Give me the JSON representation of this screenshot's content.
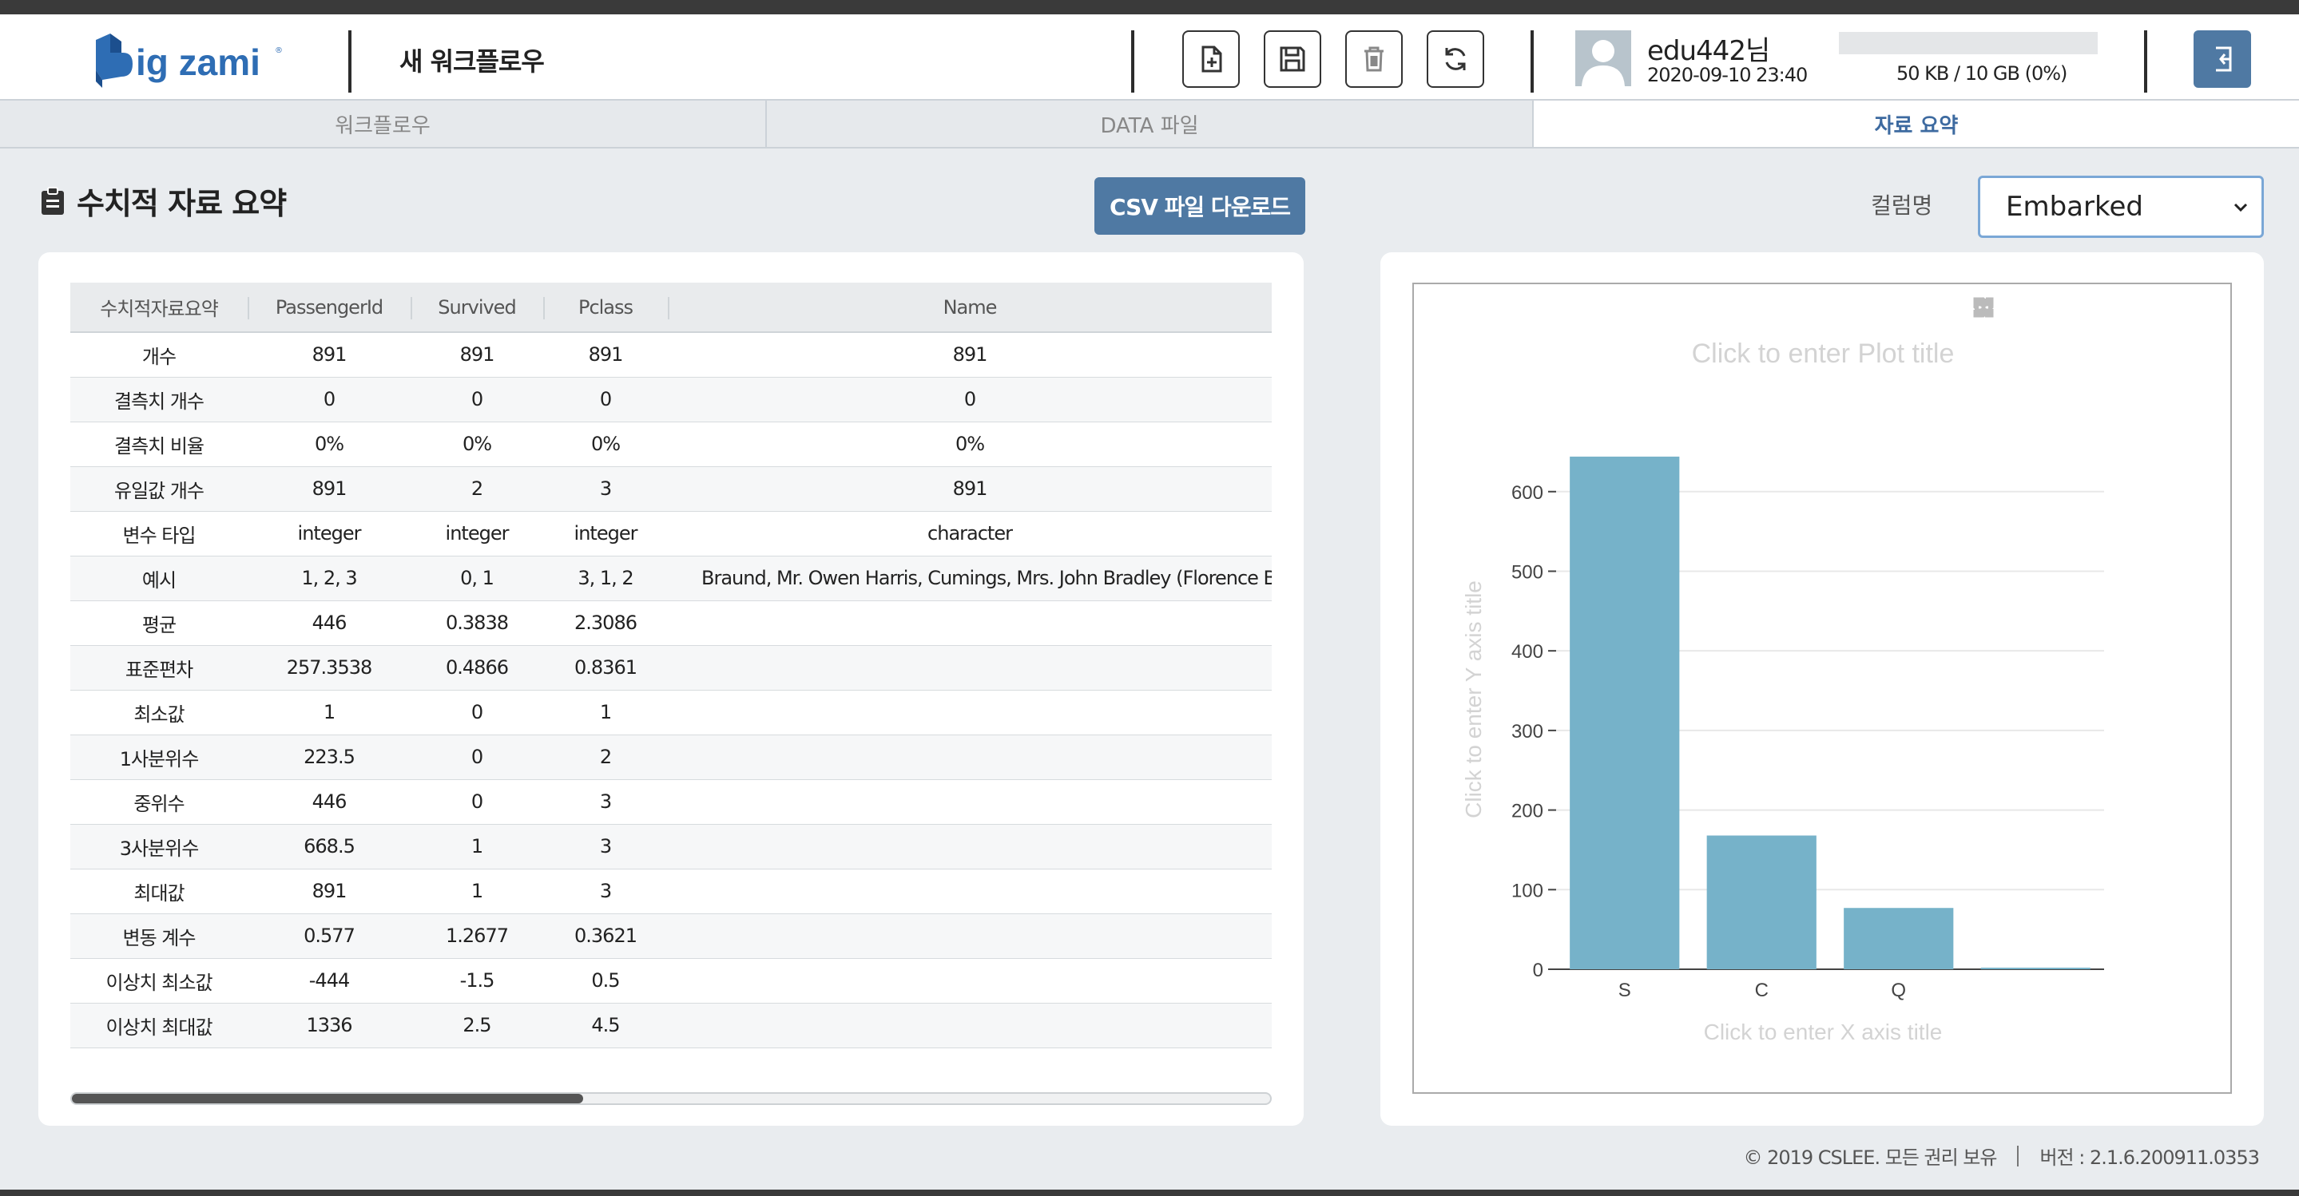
{
  "header": {
    "logo_text": "Big zami",
    "workflow_title": "새 워크플로우",
    "user_name": "edu442님",
    "user_datetime": "2020-09-10 23:40",
    "storage_text": "50 KB / 10 GB (0%)",
    "storage_percent": 0
  },
  "tabs": [
    {
      "label": "워크플로우",
      "active": false
    },
    {
      "label": "DATA 파일",
      "active": false
    },
    {
      "label": "자료 요약",
      "active": true
    }
  ],
  "toolbar": {
    "section_title": "수치적 자료 요약",
    "csv_button": "CSV 파일 다운로드",
    "column_label": "컬럼명",
    "column_selected": "Embarked"
  },
  "table": {
    "headers": [
      "수치적자료요약",
      "PassengerId",
      "Survived",
      "Pclass",
      "Name"
    ],
    "rows": [
      [
        "개수",
        "891",
        "891",
        "891",
        "891"
      ],
      [
        "결측치 개수",
        "0",
        "0",
        "0",
        "0"
      ],
      [
        "결측치 비율",
        "0%",
        "0%",
        "0%",
        "0%"
      ],
      [
        "유일값 개수",
        "891",
        "2",
        "3",
        "891"
      ],
      [
        "변수 타입",
        "integer",
        "integer",
        "integer",
        "character"
      ],
      [
        "예시",
        "1, 2, 3",
        "0, 1",
        "3, 1, 2",
        "Braund, Mr. Owen Harris, Cumings, Mrs. John Bradley (Florence Briggs Thayer)"
      ],
      [
        "평균",
        "446",
        "0.3838",
        "2.3086",
        ""
      ],
      [
        "표준편차",
        "257.3538",
        "0.4866",
        "0.8361",
        ""
      ],
      [
        "최소값",
        "1",
        "0",
        "1",
        ""
      ],
      [
        "1사분위수",
        "223.5",
        "0",
        "2",
        ""
      ],
      [
        "중위수",
        "446",
        "0",
        "3",
        ""
      ],
      [
        "3사분위수",
        "668.5",
        "1",
        "3",
        ""
      ],
      [
        "최대값",
        "891",
        "1",
        "3",
        ""
      ],
      [
        "변동 계수",
        "0.577",
        "1.2677",
        "0.3621",
        ""
      ],
      [
        "이상치 최소값",
        "-444",
        "-1.5",
        "0.5",
        ""
      ],
      [
        "이상치 최대값",
        "1336",
        "2.5",
        "4.5",
        ""
      ]
    ]
  },
  "chart_data": {
    "type": "bar",
    "title": "Click to enter Plot title",
    "xlabel": "Click to enter X axis title",
    "ylabel": "Click to enter Y axis title",
    "categories": [
      "S",
      "C",
      "Q",
      ""
    ],
    "values": [
      644,
      168,
      77,
      2
    ],
    "yticks": [
      0,
      100,
      200,
      300,
      400,
      500,
      600
    ],
    "ylim": [
      0,
      678
    ],
    "grid": true,
    "bar_color": "#76b2c9"
  },
  "modebar_icons": [
    "camera-icon",
    "pan-icon",
    "box-select-icon",
    "zoom-in-icon",
    "zoom-out-icon",
    "autoscale-icon"
  ],
  "footer": {
    "copyright": "© 2019 CSLEE. 모든 권리 보유",
    "version": "버전 : 2.1.6.200911.0353"
  },
  "colors": {
    "accent": "#4f79a3",
    "active_tab_text": "#3d6aa0",
    "background": "#e9ecef"
  }
}
